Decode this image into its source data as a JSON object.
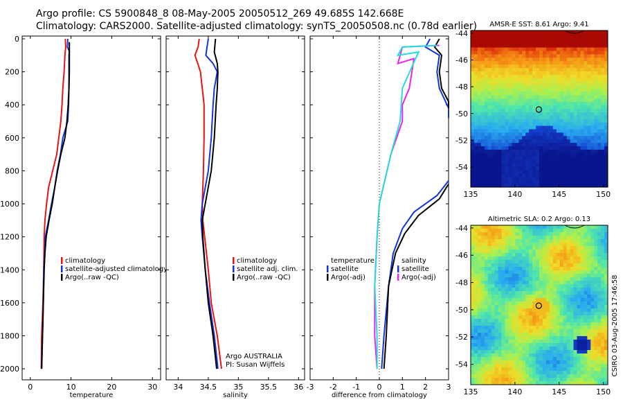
{
  "header": {
    "line1": "Argo profile: CS 5900848_8 08-May-2005 20050512_269 49.685S 142.668E",
    "line2": "Climatology: CARS2000. Satellite-adjusted climatology: synTS_20050508.nc (0.78d earlier)"
  },
  "side_text": "CSIRO 03-Aug-2005 17:46:58",
  "colors": {
    "climatology": "#ee1111",
    "satellite": "#1133dd",
    "argo": "#000000",
    "argo_adj_sal": "#ee22ee",
    "temp_diff": "#22dddd"
  },
  "chart_data": [
    {
      "id": "temperature",
      "type": "line",
      "xlabel": "temperature",
      "xlim": [
        -2,
        32
      ],
      "xticks": [
        0,
        10,
        20,
        30
      ],
      "ylim": [
        0,
        2050
      ],
      "yticks": [
        0,
        200,
        400,
        600,
        800,
        1000,
        1200,
        1400,
        1600,
        1800,
        2000
      ],
      "y_inverted": true,
      "legend": [
        "climatology",
        "satellite-adjusted climatology",
        "Argo(..raw -QC)"
      ],
      "legend_colors": [
        "#ee1111",
        "#1133dd",
        "#000000"
      ],
      "series": [
        {
          "name": "climatology",
          "color": "#ee1111",
          "points": [
            [
              8.6,
              0
            ],
            [
              8.7,
              50
            ],
            [
              8.5,
              100
            ],
            [
              8.3,
              200
            ],
            [
              8.0,
              300
            ],
            [
              7.8,
              400
            ],
            [
              7.5,
              500
            ],
            [
              7.0,
              600
            ],
            [
              6.5,
              700
            ],
            [
              5.5,
              800
            ],
            [
              4.5,
              900
            ],
            [
              4.0,
              1000
            ],
            [
              3.6,
              1100
            ],
            [
              3.4,
              1200
            ],
            [
              3.3,
              1400
            ],
            [
              3.1,
              1600
            ],
            [
              2.8,
              1800
            ],
            [
              2.7,
              2000
            ]
          ]
        },
        {
          "name": "satellite-adjusted climatology",
          "color": "#1133dd",
          "points": [
            [
              9.2,
              0
            ],
            [
              9.1,
              50
            ],
            [
              9.6,
              75
            ],
            [
              9.5,
              100
            ],
            [
              9.5,
              200
            ],
            [
              9.5,
              300
            ],
            [
              9.4,
              400
            ],
            [
              9.2,
              500
            ],
            [
              8.0,
              600
            ],
            [
              7.4,
              700
            ],
            [
              6.6,
              800
            ],
            [
              6.0,
              900
            ],
            [
              5.2,
              1000
            ],
            [
              4.5,
              1100
            ],
            [
              3.7,
              1200
            ],
            [
              3.5,
              1300
            ],
            [
              3.3,
              1400
            ],
            [
              3.2,
              1600
            ],
            [
              3.0,
              1800
            ],
            [
              2.8,
              2000
            ]
          ]
        },
        {
          "name": "Argo(..raw -QC)",
          "color": "#000000",
          "points": [
            [
              9.6,
              20
            ],
            [
              9.6,
              100
            ],
            [
              9.6,
              200
            ],
            [
              9.5,
              300
            ],
            [
              9.3,
              400
            ],
            [
              9.0,
              500
            ],
            [
              8.5,
              600
            ],
            [
              7.5,
              700
            ],
            [
              6.7,
              800
            ],
            [
              6.0,
              900
            ],
            [
              5.4,
              1000
            ],
            [
              4.6,
              1100
            ],
            [
              3.9,
              1200
            ],
            [
              3.6,
              1300
            ],
            [
              3.4,
              1400
            ],
            [
              3.2,
              1600
            ],
            [
              3.0,
              1800
            ],
            [
              2.8,
              2000
            ]
          ]
        }
      ]
    },
    {
      "id": "salinity",
      "type": "line",
      "xlabel": "salinity",
      "xlim": [
        33.8,
        36.1
      ],
      "xticks": [
        34,
        34.5,
        35,
        35.5,
        36
      ],
      "xticklabels": [
        "34",
        "34.5",
        "35",
        "35.5",
        "36"
      ],
      "ylim": [
        0,
        2050
      ],
      "y_inverted": true,
      "legend": [
        "climatology",
        "satellite adj. clim.",
        "Argo(..raw -QC)"
      ],
      "legend_colors": [
        "#ee1111",
        "#1133dd",
        "#000000"
      ],
      "annotation": [
        "Argo AUSTRALIA",
        "PI: Susan Wijffels"
      ],
      "series": [
        {
          "name": "climatology",
          "color": "#ee1111",
          "points": [
            [
              34.35,
              0
            ],
            [
              34.33,
              50
            ],
            [
              34.28,
              100
            ],
            [
              34.37,
              200
            ],
            [
              34.4,
              300
            ],
            [
              34.43,
              400
            ],
            [
              34.43,
              600
            ],
            [
              34.42,
              800
            ],
            [
              34.4,
              1000
            ],
            [
              34.41,
              1100
            ],
            [
              34.44,
              1200
            ],
            [
              34.5,
              1400
            ],
            [
              34.55,
              1600
            ],
            [
              34.65,
              1800
            ],
            [
              34.72,
              2000
            ]
          ]
        },
        {
          "name": "satellite adj. clim.",
          "color": "#1133dd",
          "points": [
            [
              34.5,
              0
            ],
            [
              34.48,
              50
            ],
            [
              34.46,
              100
            ],
            [
              34.58,
              150
            ],
            [
              34.65,
              200
            ],
            [
              34.6,
              300
            ],
            [
              34.58,
              400
            ],
            [
              34.55,
              600
            ],
            [
              34.5,
              800
            ],
            [
              34.4,
              1000
            ],
            [
              34.38,
              1100
            ],
            [
              34.4,
              1200
            ],
            [
              34.45,
              1400
            ],
            [
              34.52,
              1600
            ],
            [
              34.6,
              1800
            ],
            [
              34.66,
              2000
            ]
          ]
        },
        {
          "name": "Argo(..raw -QC)",
          "color": "#000000",
          "points": [
            [
              34.62,
              0
            ],
            [
              34.6,
              80
            ],
            [
              34.65,
              150
            ],
            [
              34.66,
              200
            ],
            [
              34.65,
              300
            ],
            [
              34.63,
              400
            ],
            [
              34.6,
              600
            ],
            [
              34.55,
              800
            ],
            [
              34.45,
              1000
            ],
            [
              34.4,
              1100
            ],
            [
              34.41,
              1200
            ],
            [
              34.45,
              1400
            ],
            [
              34.5,
              1600
            ],
            [
              34.58,
              1800
            ],
            [
              34.64,
              2000
            ]
          ]
        }
      ]
    },
    {
      "id": "difference",
      "type": "line",
      "xlabel": "difference from climatology",
      "xlim": [
        -3,
        3
      ],
      "xticks": [
        -3,
        -2,
        -1,
        0,
        1,
        2,
        3
      ],
      "ylim": [
        0,
        2050
      ],
      "y_inverted": true,
      "legend_left": [
        "temperature",
        "satellite",
        "Argo(-adj)"
      ],
      "legend_left_colors": [
        "#ffffff",
        "#1133dd",
        "#000000"
      ],
      "legend_right": [
        "salinity",
        "satellite",
        "Argo(-adj)"
      ],
      "legend_right_colors": [
        "#ffffff",
        "#1133dd",
        "#ee22ee"
      ],
      "series": [
        {
          "name": "salinity satellite",
          "color": "#1133dd",
          "points": [
            [
              2.2,
              0
            ],
            [
              2.0,
              50
            ],
            [
              2.6,
              100
            ],
            [
              2.5,
              200
            ],
            [
              2.6,
              300
            ],
            [
              3.0,
              420
            ],
            [
              3.2,
              480
            ]
          ]
        },
        {
          "name": "salinity Argo",
          "color": "#000000",
          "points": [
            [
              2.6,
              0
            ],
            [
              2.4,
              50
            ],
            [
              2.7,
              100
            ],
            [
              2.6,
              200
            ],
            [
              2.7,
              300
            ],
            [
              3.0,
              380
            ],
            [
              3.2,
              420
            ]
          ]
        },
        {
          "name": "temperature satellite",
          "color": "#1133dd",
          "points": [
            [
              3.2,
              860
            ],
            [
              2.5,
              950
            ],
            [
              1.5,
              1050
            ],
            [
              1.0,
              1150
            ],
            [
              0.6,
              1300
            ],
            [
              0.4,
              1500
            ],
            [
              0.2,
              1800
            ],
            [
              0.1,
              2000
            ]
          ]
        },
        {
          "name": "temperature Argo",
          "color": "#000000",
          "points": [
            [
              3.2,
              880
            ],
            [
              2.6,
              970
            ],
            [
              1.7,
              1070
            ],
            [
              1.1,
              1180
            ],
            [
              0.7,
              1300
            ],
            [
              0.4,
              1500
            ],
            [
              0.3,
              1800
            ],
            [
              0.2,
              2000
            ]
          ]
        },
        {
          "name": "salinity Argo(-adj)",
          "color": "#ee22ee",
          "points": [
            [
              2.6,
              40
            ],
            [
              1.0,
              50
            ],
            [
              0.8,
              150
            ],
            [
              1.5,
              120
            ],
            [
              1.3,
              300
            ],
            [
              1.0,
              400
            ],
            [
              1.0,
              500
            ],
            [
              0.5,
              700
            ],
            [
              0.0,
              1000
            ],
            [
              -0.1,
              1200
            ],
            [
              -0.2,
              1500
            ],
            [
              -0.2,
              1800
            ],
            [
              -0.1,
              2000
            ]
          ]
        },
        {
          "name": "temperature Argo(-adj)",
          "color": "#22dddd",
          "points": [
            [
              2.5,
              40
            ],
            [
              1.0,
              50
            ],
            [
              0.8,
              100
            ],
            [
              1.7,
              80
            ],
            [
              1.0,
              300
            ],
            [
              0.9,
              500
            ],
            [
              0.5,
              700
            ],
            [
              0.0,
              1000
            ],
            [
              -0.1,
              1200
            ],
            [
              -0.2,
              1500
            ],
            [
              -0.1,
              1800
            ],
            [
              -0.1,
              2000
            ]
          ]
        }
      ]
    }
  ],
  "maps": [
    {
      "title": "AMSR-E SST: 8.61 Argo: 9.41",
      "type": "heatmap",
      "xlim": [
        135,
        150.5
      ],
      "ylim": [
        -55.5,
        -43.8
      ],
      "xticks": [
        135,
        140,
        145,
        150
      ],
      "yticks": [
        -44,
        -46,
        -48,
        -50,
        -52,
        -54
      ],
      "argo_marker": [
        142.7,
        -49.7
      ]
    },
    {
      "title": "Altimetric SLA: 0.2 Argo: 0.13",
      "type": "heatmap",
      "xlim": [
        135,
        150.5
      ],
      "ylim": [
        -55.5,
        -43.8
      ],
      "xticks": [
        135,
        140,
        145,
        150
      ],
      "yticks": [
        -44,
        -46,
        -48,
        -50,
        -52,
        -54
      ],
      "argo_marker": [
        142.7,
        -49.7
      ]
    }
  ]
}
